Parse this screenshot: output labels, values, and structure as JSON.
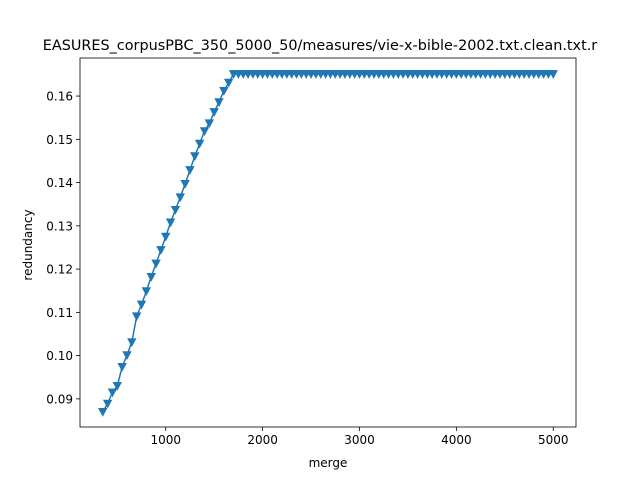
{
  "chart_data": {
    "type": "line",
    "title": "EASURES_corpusPBC_350_5000_50/measures/vie-x-bible-2002.txt.clean.txt.r",
    "xlabel": "merge",
    "ylabel": "redundancy",
    "xlim": [
      115,
      5235
    ],
    "ylim": [
      0.0835,
      0.1688
    ],
    "xticks": [
      1000,
      2000,
      3000,
      4000,
      5000
    ],
    "xtick_labels": [
      "1000",
      "2000",
      "3000",
      "4000",
      "5000"
    ],
    "yticks": [
      0.09,
      0.1,
      0.11,
      0.12,
      0.13,
      0.14,
      0.15,
      0.16
    ],
    "ytick_labels": [
      "0.09",
      "0.10",
      "0.11",
      "0.12",
      "0.13",
      "0.14",
      "0.15",
      "0.16"
    ],
    "grid": false,
    "marker": "triangle-down",
    "color": "#1f77b4",
    "series": [
      {
        "x": [
          350,
          400,
          450,
          500,
          550,
          600,
          650,
          700,
          750,
          800,
          850,
          900,
          950,
          1000,
          1050,
          1100,
          1150,
          1200,
          1250,
          1300,
          1350,
          1400,
          1450,
          1500,
          1550,
          1600,
          1650,
          1700,
          1750,
          1800,
          1850,
          1900,
          1950,
          2000,
          2050,
          2100,
          2150,
          2200,
          2250,
          2300,
          2350,
          2400,
          2450,
          2500,
          2550,
          2600,
          2650,
          2700,
          2750,
          2800,
          2850,
          2900,
          2950,
          3000,
          3050,
          3100,
          3150,
          3200,
          3250,
          3300,
          3350,
          3400,
          3450,
          3500,
          3550,
          3600,
          3650,
          3700,
          3750,
          3800,
          3850,
          3900,
          3950,
          4000,
          4050,
          4100,
          4150,
          4200,
          4250,
          4300,
          4350,
          4400,
          4450,
          4500,
          4550,
          4600,
          4650,
          4700,
          4750,
          4800,
          4850,
          4900,
          4950,
          5000
        ],
        "y": [
          0.087,
          0.0889,
          0.0915,
          0.093,
          0.0974,
          0.1001,
          0.1031,
          0.1091,
          0.1118,
          0.1149,
          0.1182,
          0.1213,
          0.1244,
          0.1275,
          0.1308,
          0.1337,
          0.1366,
          0.1397,
          0.1429,
          0.1461,
          0.149,
          0.1519,
          0.1537,
          0.1563,
          0.1586,
          0.1612,
          0.1631,
          0.1651,
          0.1651,
          0.1651,
          0.1651,
          0.1651,
          0.1651,
          0.1651,
          0.1651,
          0.1651,
          0.1651,
          0.1651,
          0.1651,
          0.1651,
          0.1651,
          0.1651,
          0.1651,
          0.1651,
          0.1651,
          0.1651,
          0.1651,
          0.1651,
          0.1651,
          0.1651,
          0.1651,
          0.1651,
          0.1651,
          0.1651,
          0.1651,
          0.1651,
          0.1651,
          0.1651,
          0.1651,
          0.1651,
          0.1651,
          0.1651,
          0.1651,
          0.1651,
          0.1651,
          0.1651,
          0.1651,
          0.1651,
          0.1651,
          0.1651,
          0.1651,
          0.1651,
          0.1651,
          0.1651,
          0.1651,
          0.1651,
          0.1651,
          0.1651,
          0.1651,
          0.1651,
          0.1651,
          0.1651,
          0.1651,
          0.1651,
          0.1651,
          0.1651,
          0.1651,
          0.1651,
          0.1651,
          0.1651,
          0.1651,
          0.1651,
          0.1651,
          0.1651
        ]
      }
    ]
  }
}
